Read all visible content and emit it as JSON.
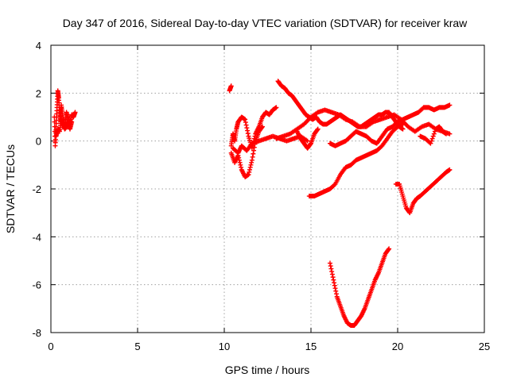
{
  "chart_data": {
    "type": "scatter",
    "title": "Day 347 of 2016, Sidereal Day-to-day VTEC variation (SDTVAR) for receiver kraw",
    "xlabel": "GPS time / hours",
    "ylabel": "SDTVAR / TECUs",
    "xlim": [
      0,
      25
    ],
    "ylim": [
      -8,
      4
    ],
    "xticks": [
      "0",
      "5",
      "10",
      "15",
      "20",
      "25"
    ],
    "yticks": [
      "-8",
      "-6",
      "-4",
      "-2",
      "0",
      "2",
      "4"
    ],
    "grid": true,
    "marker": "plus",
    "color": "#ff0000",
    "series": [
      {
        "x": [
          0.2,
          0.25,
          0.3,
          0.35,
          0.4,
          0.45,
          0.5,
          0.55,
          0.6,
          0.7,
          0.8,
          0.9,
          1.0,
          1.1,
          1.2,
          1.3,
          1.4
        ],
        "y": [
          1.0,
          -0.2,
          0.6,
          1.4,
          2.1,
          1.8,
          1.2,
          0.8,
          1.5,
          1.0,
          0.6,
          1.2,
          0.9,
          0.7,
          1.1,
          1.0,
          1.2
        ]
      },
      {
        "x": [
          0.3,
          0.4,
          0.5,
          0.6,
          0.7,
          0.8,
          0.9,
          1.0,
          1.1,
          1.2
        ],
        "y": [
          0.2,
          0.5,
          0.4,
          0.9,
          0.7,
          0.5,
          0.6,
          0.8,
          0.5,
          0.8
        ]
      },
      {
        "x": [
          10.3,
          10.4
        ],
        "y": [
          2.1,
          2.3
        ]
      },
      {
        "x": [
          10.4,
          10.5,
          10.6,
          10.7,
          10.8,
          11.0,
          11.2,
          11.4,
          11.6,
          11.8,
          12.0,
          12.2,
          12.4,
          12.6,
          12.8,
          13.0
        ],
        "y": [
          -0.2,
          0.3,
          0.0,
          0.5,
          0.8,
          1.0,
          0.9,
          0.2,
          -0.3,
          0.3,
          0.6,
          1.0,
          1.2,
          1.1,
          1.3,
          1.4
        ]
      },
      {
        "x": [
          10.4,
          10.6,
          10.8,
          11.0,
          11.2,
          11.4,
          11.6,
          11.8,
          12.0,
          12.2
        ],
        "y": [
          -0.5,
          -0.9,
          -0.6,
          -1.2,
          -1.5,
          -1.4,
          -0.8,
          0.0,
          0.4,
          0.6
        ]
      },
      {
        "x": [
          10.5,
          10.8,
          11.0,
          11.3,
          11.6,
          12.0,
          12.4,
          12.8,
          13.2,
          13.6,
          14.0,
          14.4,
          14.8
        ],
        "y": [
          -0.3,
          -0.5,
          -0.2,
          -0.4,
          -0.1,
          0.0,
          0.1,
          0.2,
          0.1,
          0.0,
          0.1,
          0.2,
          0.0
        ]
      },
      {
        "x": [
          13.1,
          13.3,
          13.5,
          13.7,
          13.9,
          14.1,
          14.3,
          14.5,
          14.7,
          14.9,
          15.1,
          15.3,
          15.5,
          15.7,
          15.9,
          16.1,
          16.3,
          16.5,
          16.7,
          16.9,
          17.1,
          17.3,
          17.5,
          17.7,
          17.9,
          18.1,
          18.3,
          18.5,
          18.7,
          18.9,
          19.1,
          19.3,
          19.5,
          19.7,
          19.9,
          20.1,
          20.3
        ],
        "y": [
          2.5,
          2.3,
          2.2,
          2.0,
          1.9,
          1.7,
          1.5,
          1.3,
          1.1,
          1.0,
          0.9,
          1.0,
          0.8,
          0.7,
          0.7,
          0.8,
          0.9,
          1.0,
          1.1,
          1.0,
          0.9,
          0.8,
          0.7,
          0.6,
          0.6,
          0.7,
          0.8,
          0.9,
          1.0,
          1.1,
          1.1,
          1.2,
          1.2,
          1.0,
          0.8,
          0.6,
          0.5
        ]
      },
      {
        "x": [
          13.0,
          13.4,
          13.8,
          14.2,
          14.6,
          15.0,
          15.4,
          15.8,
          16.2,
          16.6,
          17.0,
          17.4,
          17.8,
          18.2,
          18.6,
          19.0,
          19.4,
          19.8,
          20.2,
          20.6,
          21.0,
          21.4,
          21.8,
          22.2,
          22.6,
          23.0
        ],
        "y": [
          0.1,
          0.2,
          0.3,
          0.5,
          0.7,
          1.0,
          1.2,
          1.3,
          1.2,
          1.1,
          0.9,
          0.8,
          0.6,
          0.6,
          0.8,
          0.9,
          1.0,
          1.1,
          0.9,
          0.6,
          0.4,
          0.6,
          0.7,
          0.5,
          0.4,
          0.3
        ]
      },
      {
        "x": [
          14.2,
          14.4,
          14.6,
          14.8,
          15.0,
          15.2,
          15.4
        ],
        "y": [
          0.4,
          0.1,
          -0.1,
          -0.3,
          -0.1,
          0.3,
          0.5
        ]
      },
      {
        "x": [
          14.9,
          15.2,
          15.5,
          15.8,
          16.1,
          16.4,
          16.7,
          17.0,
          17.3,
          17.6,
          17.9,
          18.2,
          18.5,
          18.8,
          19.1,
          19.4,
          19.7,
          20.0,
          20.3
        ],
        "y": [
          -2.3,
          -2.3,
          -2.2,
          -2.1,
          -2.0,
          -1.8,
          -1.4,
          -1.1,
          -1.0,
          -0.8,
          -0.7,
          -0.6,
          -0.5,
          -0.4,
          -0.2,
          0.1,
          0.4,
          0.6,
          0.7
        ]
      },
      {
        "x": [
          16.1,
          16.4,
          16.7,
          17.0,
          17.3,
          17.6,
          17.9,
          18.2,
          18.5,
          18.8,
          19.1,
          19.4,
          19.7,
          20.0,
          20.3,
          20.6,
          20.9,
          21.2,
          21.5,
          21.8,
          22.1,
          22.4,
          22.7,
          23.0
        ],
        "y": [
          -0.1,
          -0.2,
          -0.1,
          0.0,
          0.2,
          0.4,
          0.3,
          0.2,
          0.0,
          -0.1,
          0.2,
          0.5,
          0.6,
          0.8,
          0.9,
          1.0,
          1.1,
          1.2,
          1.4,
          1.4,
          1.3,
          1.4,
          1.4,
          1.5
        ]
      },
      {
        "x": [
          16.1,
          16.3,
          16.5,
          16.7,
          16.9,
          17.1,
          17.3,
          17.5,
          17.7,
          17.9,
          18.1,
          18.3,
          18.5,
          18.7,
          18.9,
          19.1,
          19.3,
          19.5
        ],
        "y": [
          -5.1,
          -5.8,
          -6.5,
          -6.9,
          -7.3,
          -7.6,
          -7.7,
          -7.7,
          -7.5,
          -7.3,
          -7.0,
          -6.6,
          -6.2,
          -5.8,
          -5.5,
          -5.1,
          -4.7,
          -4.5
        ]
      },
      {
        "x": [
          19.9,
          20.1,
          20.3,
          20.5,
          20.7,
          20.9,
          21.1,
          21.3,
          21.6,
          21.9,
          22.2,
          22.5,
          22.8,
          23.0
        ],
        "y": [
          -1.8,
          -1.8,
          -2.3,
          -2.8,
          -3.0,
          -2.6,
          -2.4,
          -2.3,
          -2.1,
          -1.9,
          -1.7,
          -1.5,
          -1.3,
          -1.2
        ]
      },
      {
        "x": [
          21.3,
          21.6,
          21.9,
          22.2,
          22.4,
          22.6,
          22.8
        ],
        "y": [
          0.2,
          0.1,
          -0.1,
          0.5,
          0.6,
          0.4,
          0.3
        ]
      }
    ]
  }
}
